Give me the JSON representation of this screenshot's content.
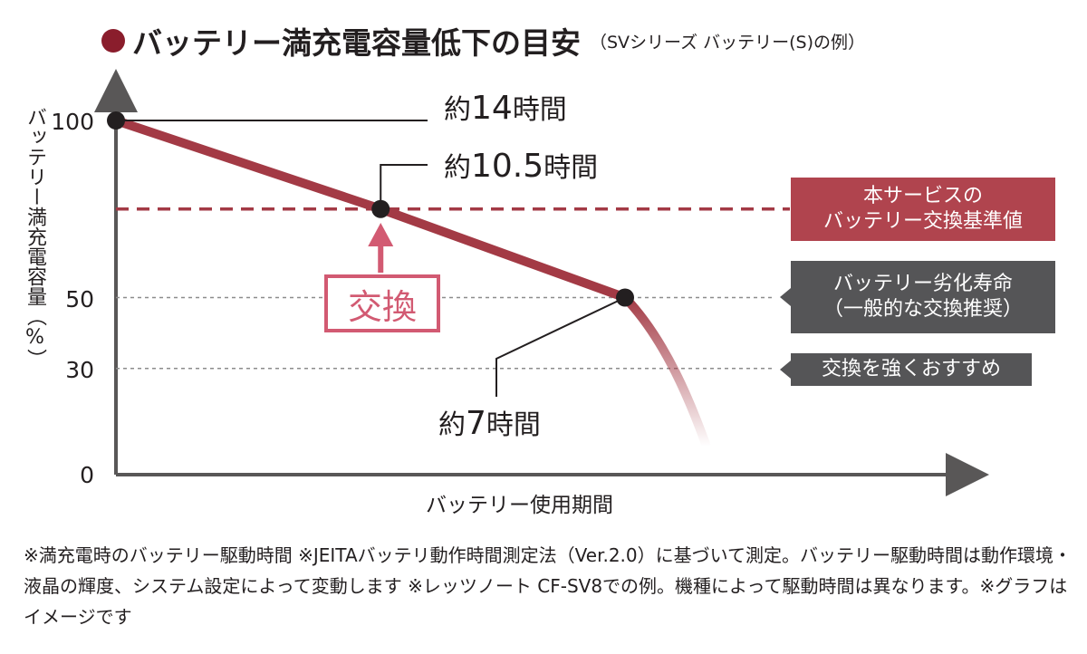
{
  "title": {
    "main": "バッテリー満充電容量低下の目安",
    "sub": "（SVシリーズ バッテリー(S)の例）"
  },
  "axes": {
    "ylabel": "バッテリー満充電容量（%）",
    "xlabel": "バッテリー使用期間"
  },
  "annotations": {
    "t14": {
      "prefix": "約",
      "num": "14",
      "suffix": "時間"
    },
    "t105": {
      "prefix": "約",
      "num": "10.5",
      "suffix": "時間"
    },
    "t7": {
      "prefix": "約",
      "num": "7",
      "suffix": "時間"
    },
    "replace_label": "交換"
  },
  "boxes": {
    "service": {
      "line1": "本サービスの",
      "line2": "バッテリー交換基準値"
    },
    "degradation": {
      "line1": "バッテリー劣化寿命",
      "line2": "（一般的な交換推奨）"
    },
    "strongly": {
      "line1": "交換を強くおすすめ"
    }
  },
  "footnote": "※満充電時のバッテリー駆動時間 ※JEITAバッテリ動作時間測定法（Ver.2.0）に基づいて測定。バッテリー駆動時間は動作環境・液晶の輝度、システム設定によって変動します ※レッツノート CF-SV8での例。機種によって駆動時間は異なります。※グラフはイメージです",
  "colors": {
    "curve": "#a33a45",
    "accent": "#8a1d2c",
    "pink": "#d25a72",
    "gray_box": "#555557",
    "red_box": "#b0444e"
  },
  "chart_data": {
    "type": "line",
    "ylim": [
      0,
      100
    ],
    "yticks": [
      "100",
      "50",
      "30",
      "0"
    ],
    "ytick_values": [
      100,
      50,
      30,
      0
    ],
    "reference_lines": [
      {
        "y": 75,
        "style": "dashed-red"
      },
      {
        "y": 50,
        "style": "dotted-gray"
      },
      {
        "y": 30,
        "style": "dotted-gray"
      }
    ],
    "series": [
      {
        "points": [
          {
            "x": 0,
            "y": 100
          },
          {
            "x": 0.52,
            "y": 75
          },
          {
            "x": 1.0,
            "y": 50
          },
          {
            "x": 1.08,
            "y": 38
          },
          {
            "x": 1.13,
            "y": 20
          },
          {
            "x": 1.16,
            "y": 8
          }
        ]
      }
    ],
    "markers": [
      {
        "x": 0,
        "y": 100,
        "label": "約14時間"
      },
      {
        "x": 0.52,
        "y": 75,
        "label": "約10.5時間"
      },
      {
        "x": 1.0,
        "y": 50,
        "label": "約7時間"
      }
    ]
  }
}
